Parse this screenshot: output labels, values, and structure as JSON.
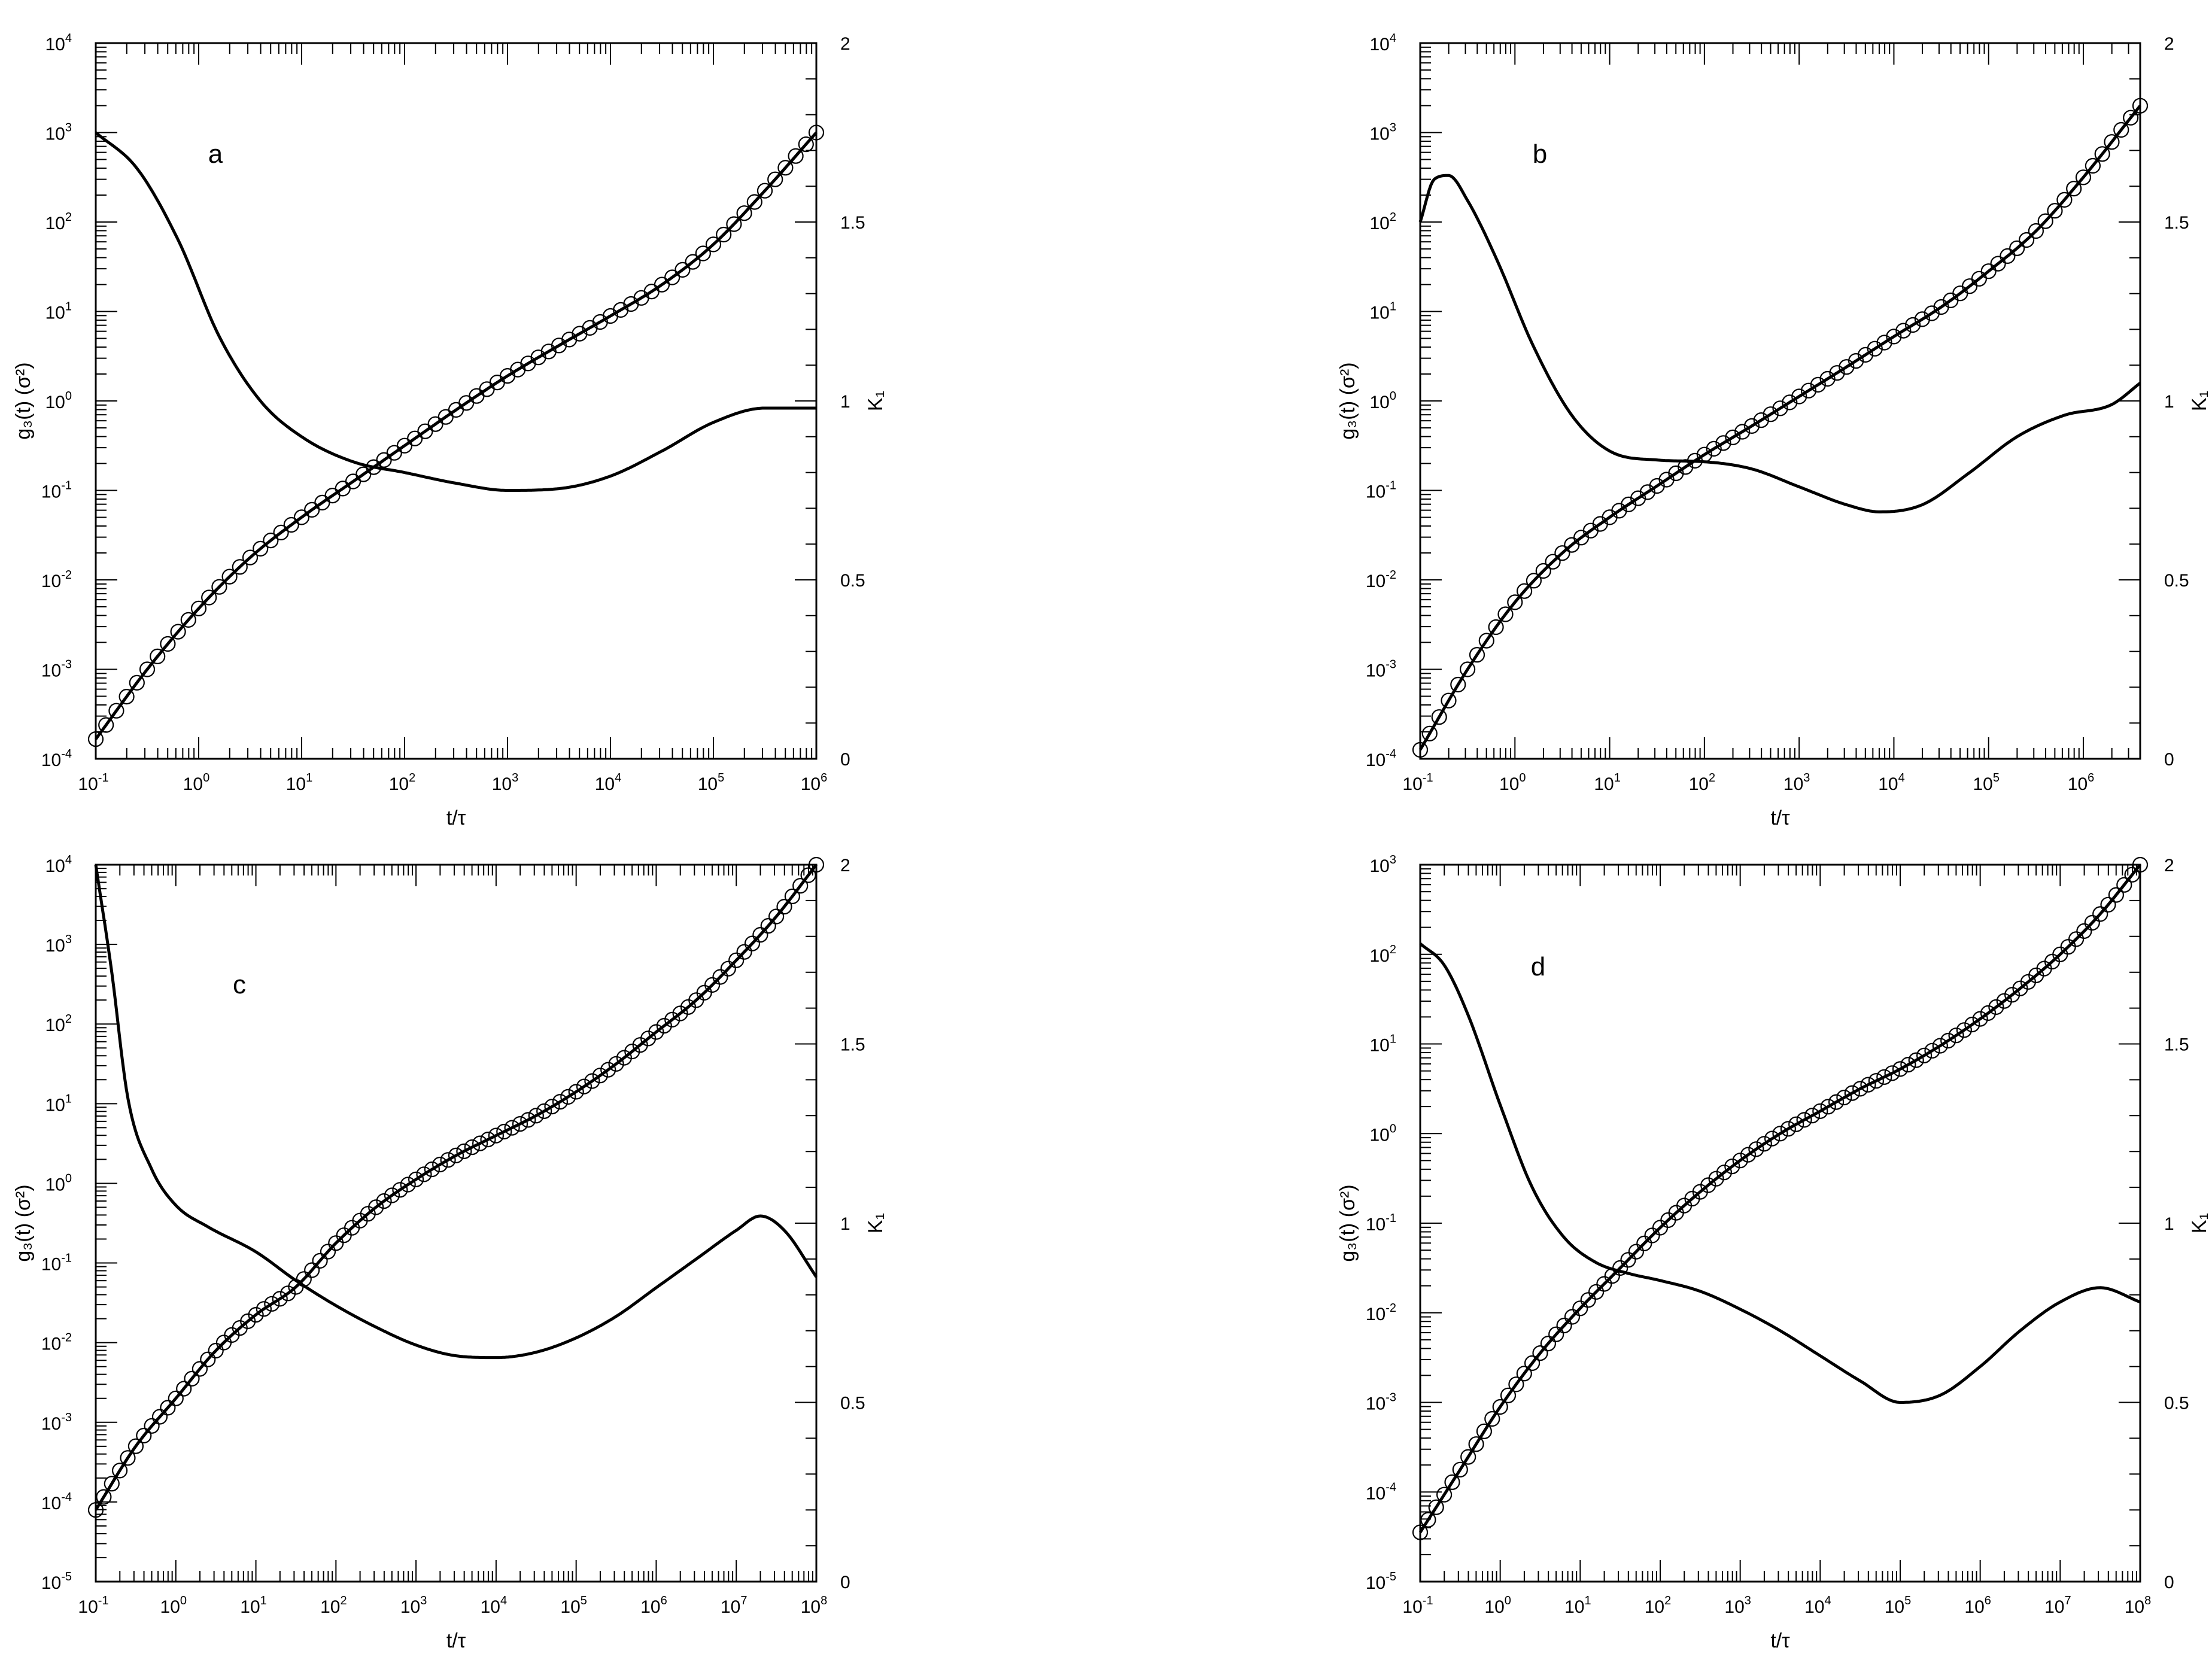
{
  "chart_data": [
    {
      "type": "line",
      "panel_label": "a",
      "x_log_range": [
        -1,
        6
      ],
      "y_left_log_range": [
        -4,
        4
      ],
      "y_right_range": [
        0,
        2
      ],
      "x_tick_exponents": [
        -1,
        0,
        1,
        2,
        3,
        4,
        5,
        6
      ],
      "y_left_tick_exponents": [
        -4,
        -3,
        -2,
        -1,
        0,
        1,
        2,
        3,
        4
      ],
      "y_right_ticks": [
        "0",
        "0.5",
        "1",
        "1.5",
        "2"
      ],
      "xlabel": "t/τ",
      "ylabel_left": "g₃(t) (σ²)",
      "ylabel_right": "K₁",
      "log_tick_base": "10",
      "series": [
        {
          "role": "g3-curve-with-markers",
          "axis": "left",
          "x_log": [
            -1,
            -0.5,
            0,
            0.5,
            1,
            1.5,
            2,
            2.5,
            3,
            3.5,
            4,
            4.5,
            5,
            5.5,
            6
          ],
          "y_log": [
            -3.78,
            -3.0,
            -2.32,
            -1.75,
            -1.3,
            -0.9,
            -0.5,
            -0.1,
            0.28,
            0.62,
            0.95,
            1.3,
            1.75,
            2.35,
            3.0
          ]
        },
        {
          "role": "K1-curve",
          "axis": "right",
          "x_log": [
            -1,
            -0.6,
            -0.2,
            0.2,
            0.6,
            1,
            1.5,
            2,
            2.5,
            3,
            3.5,
            4,
            4.5,
            5,
            5.5,
            6
          ],
          "y": [
            1.75,
            1.65,
            1.45,
            1.18,
            1.0,
            0.9,
            0.83,
            0.8,
            0.77,
            0.75,
            0.755,
            0.79,
            0.86,
            0.94,
            0.98,
            0.98
          ]
        }
      ]
    },
    {
      "type": "line",
      "panel_label": "b",
      "x_log_range": [
        -1,
        6.6
      ],
      "y_left_log_range": [
        -4,
        4
      ],
      "y_right_range": [
        0,
        2
      ],
      "x_tick_exponents": [
        -1,
        0,
        1,
        2,
        3,
        4,
        5,
        6
      ],
      "y_left_tick_exponents": [
        -4,
        -3,
        -2,
        -1,
        0,
        1,
        2,
        3,
        4
      ],
      "y_right_ticks": [
        "0",
        "0.5",
        "1",
        "1.5",
        "2"
      ],
      "xlabel": "t/τ",
      "ylabel_left": "g₃(t) (σ²)",
      "ylabel_right": "K₁",
      "log_tick_base": "10",
      "series": [
        {
          "role": "g3-curve-with-markers",
          "axis": "left",
          "x_log": [
            -1,
            -0.5,
            0,
            0.5,
            1,
            1.5,
            2,
            2.5,
            3,
            3.5,
            4,
            4.5,
            5,
            5.5,
            6,
            6.6
          ],
          "y_log": [
            -3.9,
            -3.0,
            -2.25,
            -1.7,
            -1.3,
            -0.95,
            -0.6,
            -0.28,
            0.05,
            0.38,
            0.72,
            1.05,
            1.45,
            1.9,
            2.5,
            3.3
          ]
        },
        {
          "role": "K1-curve",
          "axis": "right",
          "x_log": [
            -1,
            -0.85,
            -0.7,
            -0.5,
            -0.2,
            0.2,
            0.6,
            1,
            1.5,
            2,
            2.5,
            3,
            3.5,
            3.85,
            4.3,
            4.8,
            5.3,
            5.8,
            6.3,
            6.6
          ],
          "y": [
            1.5,
            1.62,
            1.63,
            1.56,
            1.4,
            1.15,
            0.96,
            0.86,
            0.835,
            0.83,
            0.81,
            0.76,
            0.71,
            0.69,
            0.71,
            0.8,
            0.9,
            0.96,
            0.99,
            1.05
          ]
        }
      ]
    },
    {
      "type": "line",
      "panel_label": "c",
      "x_log_range": [
        -1,
        8
      ],
      "y_left_log_range": [
        -5,
        4
      ],
      "y_right_range": [
        0,
        2
      ],
      "x_tick_exponents": [
        -1,
        0,
        1,
        2,
        3,
        4,
        5,
        6,
        7,
        8
      ],
      "y_left_tick_exponents": [
        -5,
        -4,
        -3,
        -2,
        -1,
        0,
        1,
        2,
        3,
        4
      ],
      "y_right_ticks": [
        "0",
        "0.5",
        "1",
        "1.5",
        "2"
      ],
      "xlabel": "t/τ",
      "ylabel_left": "g₃(t) (σ²)",
      "ylabel_right": "K₁",
      "log_tick_base": "10",
      "series": [
        {
          "role": "g3-curve-with-markers",
          "axis": "left",
          "x_log": [
            -1,
            -0.5,
            0,
            0.5,
            1,
            1.5,
            2,
            2.5,
            3,
            3.5,
            4,
            4.5,
            5,
            5.5,
            6,
            6.5,
            7,
            7.5,
            8
          ],
          "y_log": [
            -4.1,
            -3.3,
            -2.7,
            -2.1,
            -1.65,
            -1.3,
            -0.75,
            -0.3,
            0.05,
            0.35,
            0.6,
            0.85,
            1.15,
            1.5,
            1.9,
            2.3,
            2.8,
            3.35,
            4.0
          ]
        },
        {
          "role": "K1-curve",
          "axis": "right",
          "x_log": [
            -1,
            -0.8,
            -0.6,
            -0.3,
            0,
            0.4,
            1,
            1.5,
            2,
            2.5,
            3,
            3.5,
            4,
            4.5,
            5,
            5.5,
            6,
            6.5,
            7,
            7.3,
            7.6,
            8
          ],
          "y": [
            2.0,
            1.7,
            1.35,
            1.15,
            1.05,
            0.99,
            0.92,
            0.84,
            0.77,
            0.71,
            0.66,
            0.63,
            0.625,
            0.64,
            0.68,
            0.74,
            0.82,
            0.9,
            0.98,
            1.02,
            0.98,
            0.85
          ]
        }
      ]
    },
    {
      "type": "line",
      "panel_label": "d",
      "x_log_range": [
        -1,
        8
      ],
      "y_left_log_range": [
        -5,
        3
      ],
      "y_right_range": [
        0,
        2
      ],
      "x_tick_exponents": [
        -1,
        0,
        1,
        2,
        3,
        4,
        5,
        6,
        7,
        8
      ],
      "y_left_tick_exponents": [
        -5,
        -4,
        -3,
        -2,
        -1,
        0,
        1,
        2,
        3
      ],
      "y_right_ticks": [
        "0",
        "0.5",
        "1",
        "1.5",
        "2"
      ],
      "xlabel": "t/τ",
      "ylabel_left": "g₃(t) (σ²)",
      "ylabel_right": "K₁",
      "log_tick_base": "10",
      "series": [
        {
          "role": "g3-curve-with-markers",
          "axis": "left",
          "x_log": [
            -1,
            -0.5,
            0,
            0.5,
            1,
            1.5,
            2,
            2.5,
            3,
            3.5,
            4,
            4.5,
            5,
            5.5,
            6,
            6.5,
            7,
            7.5,
            8
          ],
          "y_log": [
            -4.45,
            -3.75,
            -3.05,
            -2.45,
            -1.95,
            -1.5,
            -1.05,
            -0.65,
            -0.3,
            0.0,
            0.25,
            0.5,
            0.72,
            0.98,
            1.28,
            1.62,
            2.0,
            2.45,
            3.0
          ]
        },
        {
          "role": "K1-curve",
          "axis": "right",
          "x_log": [
            -1,
            -0.7,
            -0.4,
            0,
            0.4,
            0.8,
            1.2,
            1.6,
            2,
            2.5,
            3,
            3.5,
            4,
            4.5,
            5,
            5.5,
            6,
            6.5,
            7,
            7.5,
            8
          ],
          "y": [
            1.78,
            1.72,
            1.58,
            1.33,
            1.1,
            0.96,
            0.89,
            0.86,
            0.84,
            0.81,
            0.76,
            0.7,
            0.63,
            0.56,
            0.5,
            0.52,
            0.6,
            0.7,
            0.78,
            0.82,
            0.78
          ]
        }
      ]
    }
  ]
}
